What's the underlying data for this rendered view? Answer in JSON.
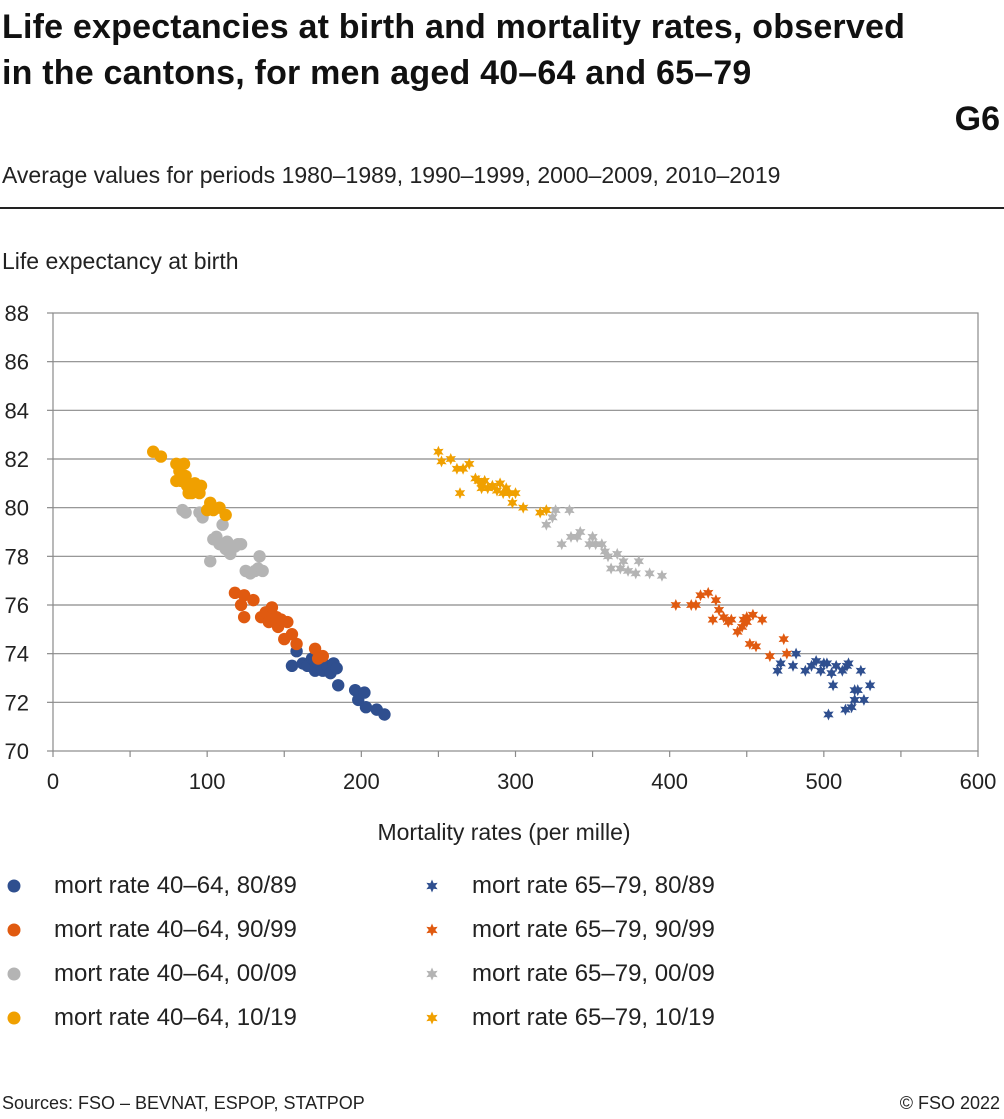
{
  "header": {
    "title": "Life expectancies at birth and mortality rates, observed in the cantons, for men aged 40–64 and 65–79",
    "graphic_number": "G6",
    "subtitle": "Average values for periods 1980–1989, 1990–1999, 2000–2009, 2010–2019"
  },
  "footer": {
    "source": "Sources: FSO – BEVNAT, ESPOP, STATPOP",
    "copyright": "© FSO 2022"
  },
  "chart_data": {
    "type": "scatter",
    "title": "Life expectancies at birth and mortality rates, observed in the cantons, for men aged 40–64 and 65–79",
    "subtitle": "Average values for periods 1980–1989, 1990–1999, 2000–2009, 2010–2019",
    "xlabel": "Mortality rates (per mille)",
    "ylabel": "Life expectancy at birth",
    "xlim": [
      0,
      600
    ],
    "ylim": [
      70,
      88
    ],
    "xticks": [
      0,
      100,
      200,
      300,
      400,
      500,
      600
    ],
    "yticks": [
      70,
      72,
      74,
      76,
      78,
      80,
      82,
      84,
      86,
      88
    ],
    "grid": "horizontal",
    "legend_position": "bottom",
    "series": [
      {
        "name": "mort rate 40–64, 80/89",
        "marker": "circle",
        "color": "#2f4f8f",
        "points": [
          [
            155,
            73.5
          ],
          [
            158,
            74.1
          ],
          [
            162,
            73.6
          ],
          [
            165,
            73.5
          ],
          [
            168,
            73.8
          ],
          [
            170,
            73.3
          ],
          [
            172,
            73.6
          ],
          [
            175,
            73.3
          ],
          [
            178,
            73.5
          ],
          [
            180,
            73.2
          ],
          [
            182,
            73.6
          ],
          [
            184,
            73.4
          ],
          [
            185,
            72.7
          ],
          [
            196,
            72.5
          ],
          [
            198,
            72.1
          ],
          [
            202,
            72.4
          ],
          [
            203,
            71.8
          ],
          [
            210,
            71.7
          ],
          [
            215,
            71.5
          ],
          [
            170,
            73.7
          ]
        ]
      },
      {
        "name": "mort rate 40–64, 90/99",
        "marker": "circle",
        "color": "#e05a10",
        "points": [
          [
            118,
            76.5
          ],
          [
            122,
            76.0
          ],
          [
            124,
            76.4
          ],
          [
            124,
            75.5
          ],
          [
            130,
            76.2
          ],
          [
            135,
            75.5
          ],
          [
            138,
            75.7
          ],
          [
            140,
            75.3
          ],
          [
            142,
            75.9
          ],
          [
            144,
            75.3
          ],
          [
            146,
            75.1
          ],
          [
            148,
            75.4
          ],
          [
            150,
            74.6
          ],
          [
            152,
            75.3
          ],
          [
            155,
            74.8
          ],
          [
            158,
            74.4
          ],
          [
            170,
            74.2
          ],
          [
            175,
            73.9
          ],
          [
            172,
            73.8
          ],
          [
            145,
            75.5
          ]
        ]
      },
      {
        "name": "mort rate 40–64, 00/09",
        "marker": "circle",
        "color": "#b4b4b4",
        "points": [
          [
            84,
            79.9
          ],
          [
            86,
            79.8
          ],
          [
            95,
            79.8
          ],
          [
            97,
            79.6
          ],
          [
            102,
            77.8
          ],
          [
            104,
            78.7
          ],
          [
            106,
            78.8
          ],
          [
            108,
            78.5
          ],
          [
            110,
            79.3
          ],
          [
            110,
            78.5
          ],
          [
            112,
            78.3
          ],
          [
            115,
            78.1
          ],
          [
            118,
            78.4
          ],
          [
            120,
            78.5
          ],
          [
            122,
            78.5
          ],
          [
            125,
            77.4
          ],
          [
            128,
            77.3
          ],
          [
            131,
            77.4
          ],
          [
            133,
            77.5
          ],
          [
            134,
            78.0
          ],
          [
            136,
            77.4
          ],
          [
            113,
            78.6
          ]
        ]
      },
      {
        "name": "mort rate 40–64, 10/19",
        "marker": "circle",
        "color": "#f0a000",
        "points": [
          [
            65,
            82.3
          ],
          [
            70,
            82.1
          ],
          [
            80,
            81.8
          ],
          [
            82,
            81.5
          ],
          [
            83,
            81.1
          ],
          [
            85,
            81.8
          ],
          [
            86,
            81.3
          ],
          [
            87,
            80.9
          ],
          [
            88,
            80.6
          ],
          [
            90,
            80.6
          ],
          [
            92,
            81.0
          ],
          [
            95,
            80.6
          ],
          [
            96,
            80.9
          ],
          [
            100,
            79.9
          ],
          [
            102,
            80.2
          ],
          [
            104,
            79.9
          ],
          [
            108,
            80.0
          ],
          [
            112,
            79.7
          ],
          [
            80,
            81.1
          ]
        ]
      },
      {
        "name": "mort rate 65–79, 80/89",
        "marker": "star",
        "color": "#2f4f8f",
        "points": [
          [
            470,
            73.3
          ],
          [
            472,
            73.6
          ],
          [
            480,
            73.5
          ],
          [
            482,
            74.0
          ],
          [
            488,
            73.3
          ],
          [
            492,
            73.5
          ],
          [
            495,
            73.7
          ],
          [
            498,
            73.3
          ],
          [
            500,
            73.6
          ],
          [
            502,
            73.6
          ],
          [
            503,
            71.5
          ],
          [
            505,
            73.2
          ],
          [
            506,
            72.7
          ],
          [
            508,
            73.5
          ],
          [
            512,
            73.3
          ],
          [
            514,
            71.7
          ],
          [
            515,
            73.5
          ],
          [
            518,
            71.8
          ],
          [
            520,
            72.5
          ],
          [
            520,
            72.1
          ],
          [
            522,
            72.5
          ],
          [
            524,
            73.3
          ],
          [
            526,
            72.1
          ],
          [
            530,
            72.7
          ],
          [
            516,
            73.6
          ]
        ]
      },
      {
        "name": "mort rate 65–79, 90/99",
        "marker": "star",
        "color": "#e05a10",
        "points": [
          [
            404,
            76.0
          ],
          [
            414,
            76.0
          ],
          [
            417,
            76.0
          ],
          [
            420,
            76.4
          ],
          [
            425,
            76.5
          ],
          [
            428,
            75.4
          ],
          [
            430,
            76.2
          ],
          [
            432,
            75.8
          ],
          [
            435,
            75.5
          ],
          [
            438,
            75.3
          ],
          [
            440,
            75.4
          ],
          [
            444,
            74.9
          ],
          [
            447,
            75.1
          ],
          [
            448,
            75.4
          ],
          [
            450,
            75.5
          ],
          [
            452,
            74.4
          ],
          [
            454,
            75.6
          ],
          [
            456,
            74.3
          ],
          [
            460,
            75.4
          ],
          [
            465,
            73.9
          ],
          [
            474,
            74.6
          ],
          [
            476,
            74.0
          ],
          [
            450,
            75.3
          ]
        ]
      },
      {
        "name": "mort rate 65–79, 00/09",
        "marker": "star",
        "color": "#b4b4b4",
        "points": [
          [
            320,
            79.3
          ],
          [
            324,
            79.6
          ],
          [
            326,
            79.9
          ],
          [
            330,
            78.5
          ],
          [
            335,
            79.9
          ],
          [
            336,
            78.8
          ],
          [
            340,
            78.8
          ],
          [
            342,
            79.0
          ],
          [
            348,
            78.5
          ],
          [
            350,
            78.8
          ],
          [
            352,
            78.5
          ],
          [
            356,
            78.5
          ],
          [
            358,
            78.2
          ],
          [
            360,
            78.0
          ],
          [
            362,
            77.5
          ],
          [
            366,
            78.1
          ],
          [
            368,
            77.5
          ],
          [
            370,
            77.8
          ],
          [
            373,
            77.4
          ],
          [
            378,
            77.3
          ],
          [
            380,
            77.8
          ],
          [
            387,
            77.3
          ],
          [
            395,
            77.2
          ]
        ]
      },
      {
        "name": "mort rate 65–79, 10/19",
        "marker": "star",
        "color": "#f0a000",
        "points": [
          [
            250,
            82.3
          ],
          [
            252,
            81.9
          ],
          [
            258,
            82.0
          ],
          [
            262,
            81.6
          ],
          [
            264,
            80.6
          ],
          [
            266,
            81.6
          ],
          [
            270,
            81.8
          ],
          [
            274,
            81.2
          ],
          [
            278,
            81.0
          ],
          [
            278,
            80.8
          ],
          [
            280,
            81.1
          ],
          [
            282,
            80.8
          ],
          [
            285,
            80.9
          ],
          [
            288,
            80.7
          ],
          [
            290,
            81.0
          ],
          [
            292,
            80.6
          ],
          [
            294,
            80.8
          ],
          [
            296,
            80.6
          ],
          [
            298,
            80.2
          ],
          [
            300,
            80.6
          ],
          [
            305,
            80.0
          ],
          [
            316,
            79.8
          ],
          [
            320,
            79.9
          ],
          [
            276,
            81.1
          ]
        ]
      }
    ]
  }
}
